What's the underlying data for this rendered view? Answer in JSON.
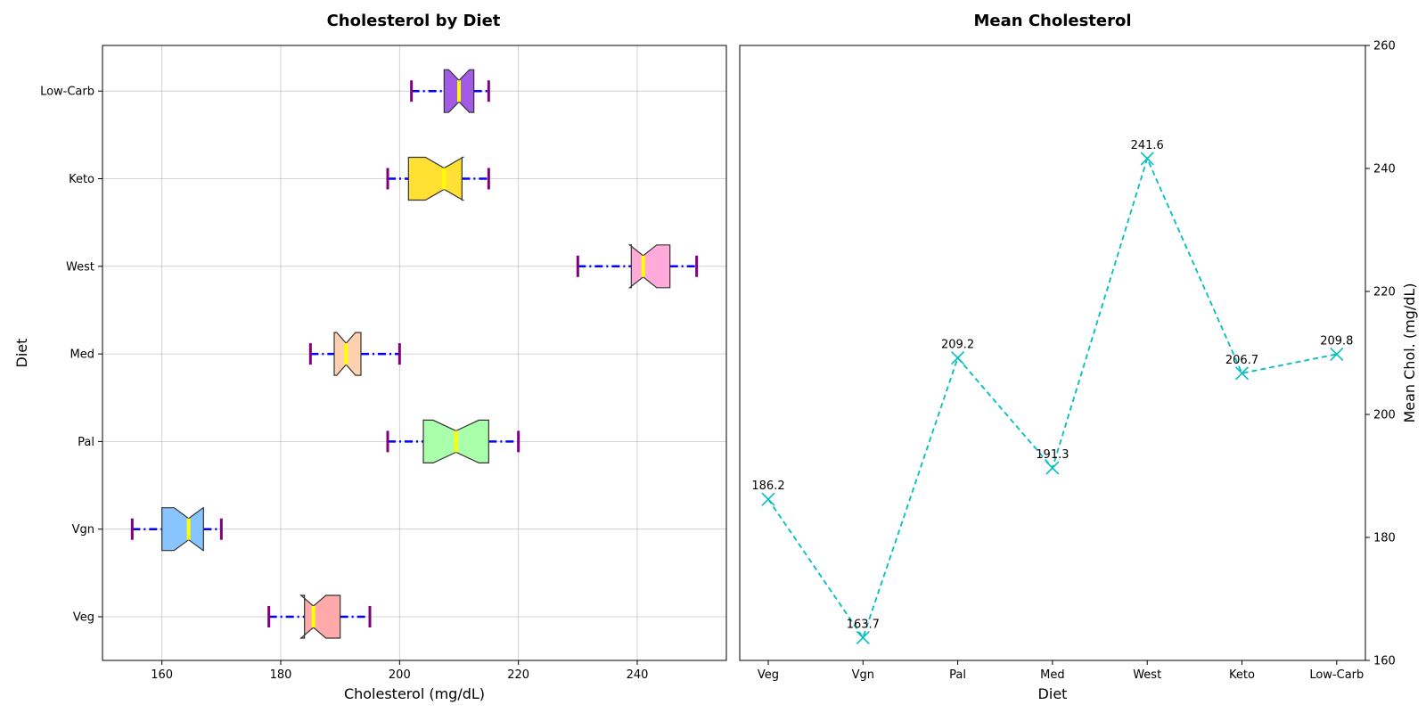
{
  "chart_data": [
    {
      "type": "box",
      "orientation": "horizontal",
      "title": "Cholesterol by Diet",
      "xlabel": "Cholesterol (mg/dL)",
      "ylabel": "Diet",
      "xlim": [
        150,
        255
      ],
      "xticks": [
        160,
        180,
        200,
        220,
        240
      ],
      "grid": true,
      "notched": true,
      "categories": [
        "Veg",
        "Vgn",
        "Pal",
        "Med",
        "West",
        "Keto",
        "Low-Carb"
      ],
      "boxes": [
        {
          "name": "Veg",
          "whisker_low": 178,
          "q1": 184,
          "median": 185.5,
          "q3": 190,
          "whisker_high": 195,
          "color": "#ffaaaa"
        },
        {
          "name": "Vgn",
          "whisker_low": 155,
          "q1": 160,
          "median": 164.5,
          "q3": 167,
          "whisker_high": 170,
          "color": "#88c4ff"
        },
        {
          "name": "Pal",
          "whisker_low": 198,
          "q1": 204,
          "median": 209.5,
          "q3": 215,
          "whisker_high": 220,
          "color": "#aaffaa"
        },
        {
          "name": "Med",
          "whisker_low": 185,
          "q1": 189,
          "median": 191,
          "q3": 193.5,
          "whisker_high": 200,
          "color": "#ffd1b0"
        },
        {
          "name": "West",
          "whisker_low": 230,
          "q1": 239,
          "median": 241,
          "q3": 245.5,
          "whisker_high": 250,
          "color": "#ffaad8"
        },
        {
          "name": "Keto",
          "whisker_low": 198,
          "q1": 201.5,
          "median": 207.5,
          "q3": 210.5,
          "whisker_high": 215,
          "color": "#ffe033"
        },
        {
          "name": "Low-Carb",
          "whisker_low": 202,
          "q1": 207.5,
          "median": 210,
          "q3": 212.5,
          "whisker_high": 215,
          "color": "#a35ae6"
        }
      ],
      "style": {
        "whisker_color": "#0000ff",
        "cap_color": "#800080",
        "median_color": "#ffff00",
        "box_edge": "#333333"
      }
    },
    {
      "type": "line",
      "title": "Mean Cholesterol",
      "xlabel": "Diet",
      "ylabel": "Mean Chol. (mg/dL)",
      "ylim": [
        160,
        260
      ],
      "yticks": [
        160,
        180,
        200,
        220,
        240,
        260
      ],
      "y_axis_side": "right",
      "grid": false,
      "categories": [
        "Veg",
        "Vgn",
        "Pal",
        "Med",
        "West",
        "Keto",
        "Low-Carb"
      ],
      "values": [
        186.2,
        163.7,
        209.2,
        191.3,
        241.6,
        206.7,
        209.8
      ],
      "data_labels": [
        "186.2",
        "163.7",
        "209.2",
        "191.3",
        "241.6",
        "206.7",
        "209.8"
      ],
      "style": {
        "line_color": "#00bfbf",
        "line_style": "dashed",
        "marker": "x"
      }
    }
  ]
}
